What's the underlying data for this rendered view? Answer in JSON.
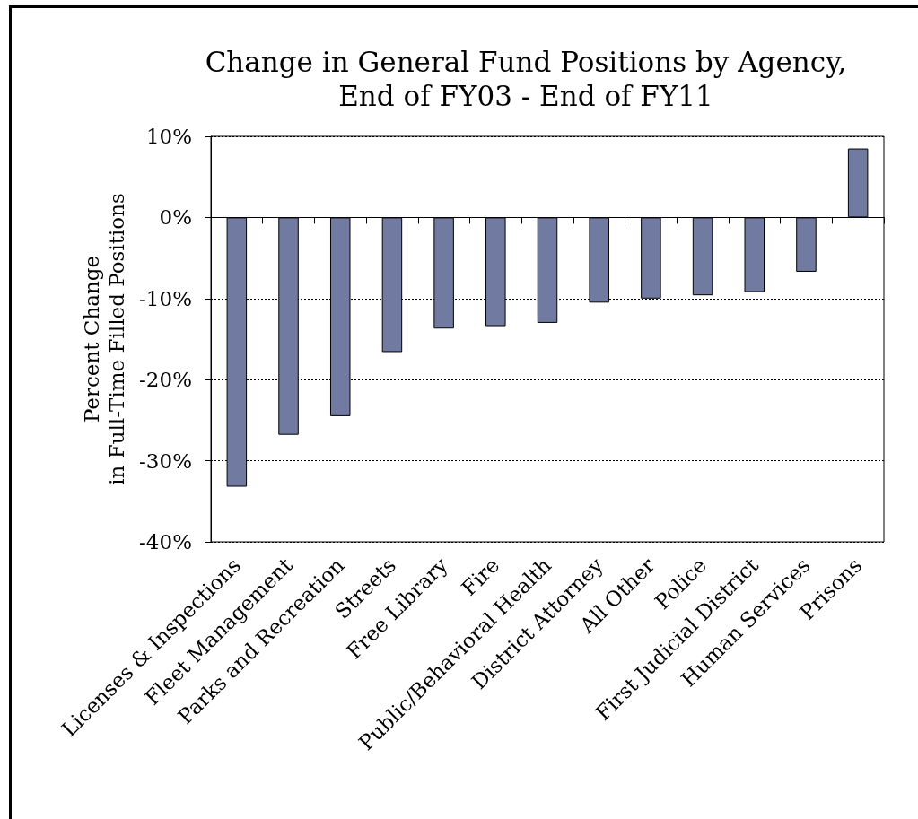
{
  "chart_data": {
    "type": "bar",
    "title": "Change in General Fund Positions by Agency,\nEnd of FY03 - End of FY11",
    "ylabel": "Percent Change\nin Full-Time Filled Positions",
    "categories": [
      "Licenses & Inspections",
      "Fleet Management",
      "Parks and Recreation",
      "Streets",
      "Free Library",
      "Fire",
      "Public/Behavioral Health",
      "District Attorney",
      "All Other",
      "Police",
      "First Judicial District",
      "Human Services",
      "Prisons"
    ],
    "values": [
      -33.2,
      -26.8,
      -24.5,
      -16.6,
      -13.7,
      -13.4,
      -13.0,
      -10.5,
      -10.0,
      -9.6,
      -9.2,
      -6.7,
      8.5
    ],
    "color": "#717ba1",
    "ylim": [
      -40,
      10
    ],
    "yticks": [
      {
        "value": -40,
        "label": "-40%"
      },
      {
        "value": -30,
        "label": "-30%"
      },
      {
        "value": -20,
        "label": "-20%"
      },
      {
        "value": -10,
        "label": "-10%"
      },
      {
        "value": 0,
        "label": "0%"
      },
      {
        "value": 10,
        "label": "10%"
      }
    ],
    "grid": "y"
  }
}
